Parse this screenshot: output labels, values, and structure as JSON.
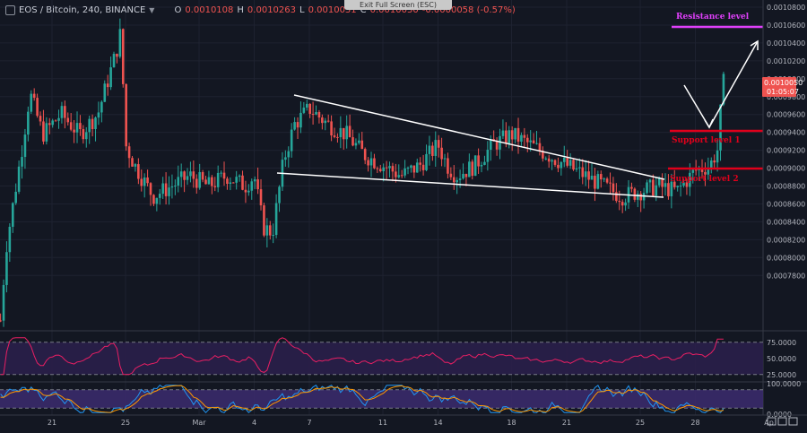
{
  "header": {
    "symbol": "EOS / Bitcoin, 240, BINANCE",
    "open_label": "O",
    "open": "0.0010108",
    "high_label": "H",
    "high": "0.0010263",
    "low_label": "L",
    "low": "0.0010031",
    "close_label": "C",
    "close": "0.0010050",
    "change": "-0.0000058 (-0.57%)"
  },
  "exit_fullscreen": "Exit Full Screen (ESC)",
  "price_tag": {
    "price": "0.0010050",
    "timer": "01:05:07"
  },
  "annotations": {
    "resistance": "Resistance level",
    "support1": "Support level 1",
    "support2": "Support level 2"
  },
  "colors": {
    "background": "#131722",
    "up": "#26a69a",
    "down": "#ef5350",
    "resistance": "#e040fb",
    "support": "#e0001b",
    "trendline": "#ffffff",
    "rsi_line": "#e91e63",
    "rsi_band": "#2a1f4a",
    "stoch_k": "#2196f3",
    "stoch_d": "#ff9800"
  },
  "chart_data": [
    {
      "type": "candlestick",
      "title": "EOS / Bitcoin, 240, BINANCE",
      "x_ticks": [
        "21",
        "25",
        "Mar",
        "4",
        "7",
        "11",
        "14",
        "18",
        "21",
        "25",
        "28",
        "Ap"
      ],
      "y_ticks": [
        "0.0010800",
        "0.0010600",
        "0.0010400",
        "0.0010200",
        "0.0010000",
        "0.0009800",
        "0.0009600",
        "0.0009400",
        "0.0009200",
        "0.0009000",
        "0.0008800",
        "0.0008600",
        "0.0008400",
        "0.0008200",
        "0.0008000",
        "0.0007800"
      ],
      "ylim": [
        0.00077,
        0.00109
      ],
      "key_points": [
        {
          "x": "18 Feb",
          "y": 0.00078
        },
        {
          "x": "24 Feb",
          "y": 0.001063
        },
        {
          "x": "5 Mar",
          "y": 0.000862
        },
        {
          "x": "7 Mar",
          "y": 0.000985
        },
        {
          "x": "26 Mar",
          "y": 0.000905
        },
        {
          "x": "27 Mar",
          "y": 0.0010263
        }
      ],
      "levels": [
        {
          "name": "Resistance level",
          "y": 0.001061
        },
        {
          "name": "Support level 1",
          "y": 0.00096
        },
        {
          "name": "Support level 2",
          "y": 0.000921
        }
      ],
      "current_price": 0.001005
    },
    {
      "type": "line",
      "name": "RSI",
      "y_ticks": [
        "75.0000",
        "50.0000",
        "25.0000"
      ],
      "ylim": [
        15,
        90
      ],
      "last_value": 80
    },
    {
      "type": "line",
      "name": "Stochastic",
      "y_ticks": [
        "100.0000",
        "0.0000"
      ],
      "ylim": [
        0,
        100
      ]
    }
  ]
}
